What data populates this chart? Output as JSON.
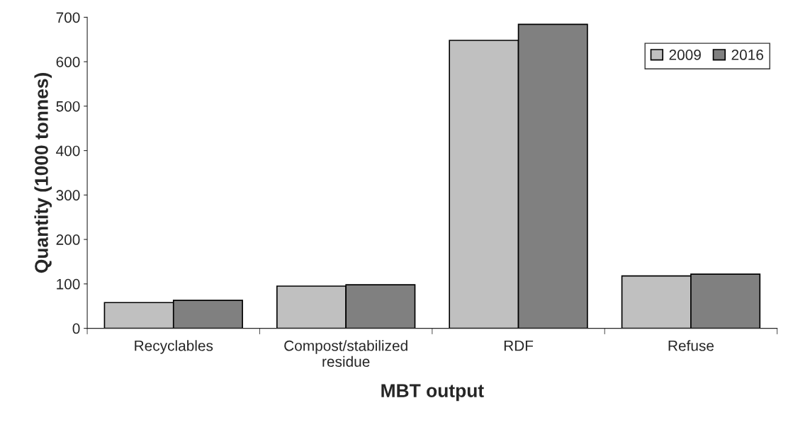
{
  "chart_data": {
    "type": "bar",
    "xlabel": "MBT output",
    "ylabel": "Quantity (1000 tonnes)",
    "categories": [
      "Recyclables",
      "Compost/stabilized\nresidue",
      "RDF",
      "Refuse"
    ],
    "series": [
      {
        "name": "2009",
        "color": "#c0c0c0",
        "values": [
          58,
          95,
          648,
          118
        ]
      },
      {
        "name": "2016",
        "color": "#808080",
        "values": [
          63,
          98,
          684,
          122
        ]
      }
    ],
    "ylim": [
      0,
      700
    ],
    "yticks": [
      0,
      100,
      200,
      300,
      400,
      500,
      600,
      700
    ],
    "grid": false,
    "legend": "top right"
  }
}
